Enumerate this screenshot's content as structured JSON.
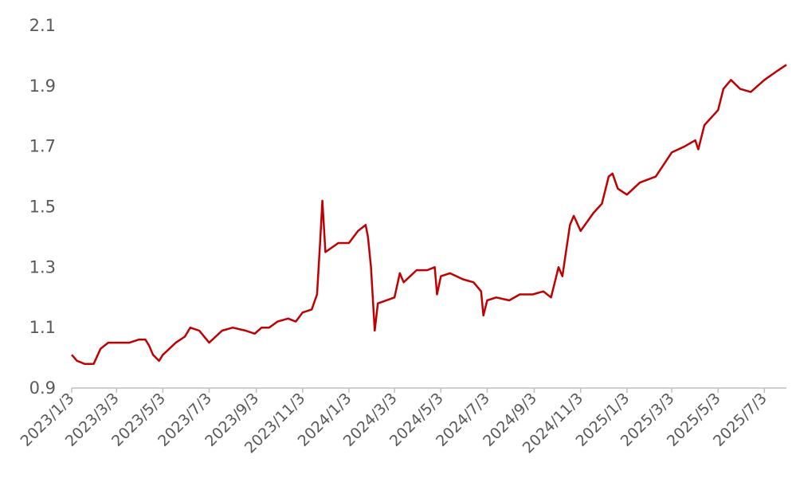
{
  "chart_data": {
    "type": "line",
    "x": [
      "2023/1/3",
      "2023/1/10",
      "2023/1/20",
      "2023/2/1",
      "2023/2/10",
      "2023/2/20",
      "2023/3/3",
      "2023/3/20",
      "2023/4/1",
      "2023/4/10",
      "2023/4/15",
      "2023/4/20",
      "2023/4/28",
      "2023/5/3",
      "2023/5/20",
      "2023/6/1",
      "2023/6/8",
      "2023/6/20",
      "2023/7/3",
      "2023/7/20",
      "2023/8/3",
      "2023/8/20",
      "2023/9/1",
      "2023/9/10",
      "2023/9/20",
      "2023/10/1",
      "2023/10/15",
      "2023/10/25",
      "2023/11/3",
      "2023/11/15",
      "2023/11/22",
      "2023/11/26",
      "2023/11/29",
      "2023/12/3",
      "2023/12/20",
      "2024/1/3",
      "2024/1/15",
      "2024/1/25",
      "2024/1/28",
      "2024/2/1",
      "2024/2/6",
      "2024/2/10",
      "2024/3/3",
      "2024/3/10",
      "2024/3/15",
      "2024/4/1",
      "2024/4/15",
      "2024/4/25",
      "2024/4/28",
      "2024/5/3",
      "2024/5/15",
      "2024/6/1",
      "2024/6/15",
      "2024/6/25",
      "2024/6/28",
      "2024/7/3",
      "2024/7/15",
      "2024/8/1",
      "2024/8/15",
      "2024/9/1",
      "2024/9/15",
      "2024/9/25",
      "2024/9/28",
      "2024/10/5",
      "2024/10/10",
      "2024/10/20",
      "2024/10/25",
      "2024/11/3",
      "2024/11/20",
      "2024/12/1",
      "2024/12/10",
      "2024/12/15",
      "2024/12/22",
      "2025/1/3",
      "2025/1/20",
      "2025/2/10",
      "2025/3/3",
      "2025/3/20",
      "2025/4/3",
      "2025/4/7",
      "2025/4/15",
      "2025/5/3",
      "2025/5/10",
      "2025/5/20",
      "2025/6/1",
      "2025/6/15",
      "2025/7/3",
      "2025/7/20",
      "2025/8/1"
    ],
    "series": [
      {
        "color": "#c00000",
        "values": [
          1.01,
          0.99,
          0.98,
          0.98,
          1.03,
          1.05,
          1.05,
          1.05,
          1.06,
          1.06,
          1.04,
          1.01,
          0.99,
          1.01,
          1.05,
          1.07,
          1.1,
          1.09,
          1.05,
          1.09,
          1.1,
          1.09,
          1.08,
          1.1,
          1.1,
          1.12,
          1.13,
          1.12,
          1.15,
          1.16,
          1.21,
          1.38,
          1.52,
          1.35,
          1.38,
          1.38,
          1.42,
          1.44,
          1.4,
          1.3,
          1.09,
          1.18,
          1.2,
          1.28,
          1.25,
          1.29,
          1.29,
          1.3,
          1.21,
          1.27,
          1.28,
          1.26,
          1.25,
          1.22,
          1.14,
          1.19,
          1.2,
          1.19,
          1.21,
          1.21,
          1.22,
          1.2,
          1.23,
          1.3,
          1.27,
          1.44,
          1.47,
          1.42,
          1.48,
          1.51,
          1.6,
          1.61,
          1.56,
          1.54,
          1.58,
          1.6,
          1.68,
          1.7,
          1.72,
          1.69,
          1.77,
          1.82,
          1.89,
          1.92,
          1.89,
          1.88,
          1.92,
          1.95,
          1.97
        ]
      }
    ],
    "xlim": [
      "2023/1/3",
      "2025/8/1"
    ],
    "xticks": [
      "2023/1/3",
      "2023/3/3",
      "2023/5/3",
      "2023/7/3",
      "2023/9/3",
      "2023/11/3",
      "2024/1/3",
      "2024/3/3",
      "2024/5/3",
      "2024/7/3",
      "2024/9/3",
      "2024/11/3",
      "2025/1/3",
      "2025/3/3",
      "2025/5/3",
      "2025/7/3"
    ],
    "ylim": [
      0.9,
      2.1
    ],
    "yticks": [
      0.9,
      1.1,
      1.3,
      1.5,
      1.7,
      1.9,
      2.1
    ],
    "grid": false
  }
}
